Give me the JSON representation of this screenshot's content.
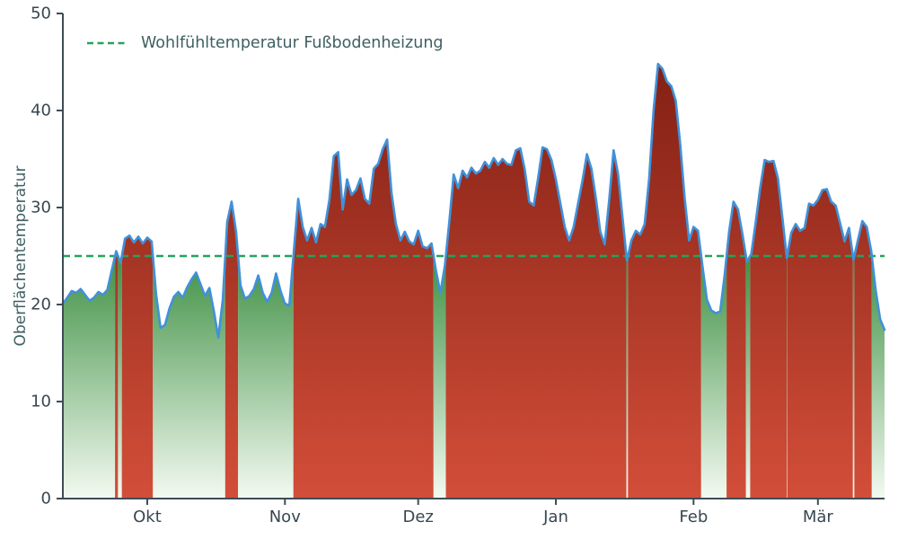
{
  "chart_data": {
    "type": "area",
    "title": "",
    "ylabel": "Oberflächentemperatur",
    "ylim": [
      0,
      50
    ],
    "yticks": [
      0,
      10,
      20,
      30,
      40,
      50
    ],
    "xticks": [
      {
        "day_index": 19,
        "label": "Okt"
      },
      {
        "day_index": 50,
        "label": "Nov"
      },
      {
        "day_index": 80,
        "label": "Dez"
      },
      {
        "day_index": 111,
        "label": "Jan"
      },
      {
        "day_index": 142,
        "label": "Feb"
      },
      {
        "day_index": 170,
        "label": "Mär"
      }
    ],
    "grid": false,
    "legend_position": "upper left",
    "threshold": {
      "value": 25,
      "label": "Wohlfühltemperatur Fußbodenheizung",
      "color": "#22a45c",
      "style": "dashed"
    },
    "fill_rule": "columns filled with red gradient where value is above threshold, green gradient where below",
    "series": [
      {
        "name": "Oberflächentemperatur",
        "x_unit": "day_index (daily values from mid-September to mid-March)",
        "values": [
          20.1,
          20.7,
          21.4,
          21.2,
          21.6,
          21.0,
          20.4,
          20.7,
          21.3,
          21.0,
          21.5,
          23.5,
          25.5,
          24.3,
          26.8,
          27.1,
          26.4,
          27.0,
          26.3,
          26.9,
          26.5,
          21.0,
          17.6,
          17.9,
          19.6,
          20.8,
          21.3,
          20.7,
          21.8,
          22.6,
          23.3,
          22.1,
          20.9,
          21.7,
          19.3,
          16.6,
          20.5,
          28.5,
          30.6,
          27.5,
          22.0,
          20.6,
          20.9,
          21.6,
          23.0,
          21.2,
          20.3,
          21.2,
          23.2,
          21.4,
          20.1,
          19.9,
          25.5,
          30.9,
          28.0,
          26.6,
          27.9,
          26.4,
          28.3,
          28.0,
          30.8,
          35.3,
          35.7,
          29.8,
          32.9,
          31.3,
          31.8,
          33.0,
          30.9,
          30.4,
          34.0,
          34.5,
          36.0,
          37.0,
          31.5,
          28.3,
          26.6,
          27.5,
          26.5,
          26.2,
          27.6,
          26.0,
          25.8,
          26.3,
          23.5,
          21.2,
          24.0,
          28.5,
          33.4,
          32.0,
          33.8,
          33.1,
          34.1,
          33.5,
          33.8,
          34.7,
          34.1,
          35.1,
          34.4,
          35.0,
          34.5,
          34.4,
          35.9,
          36.1,
          33.9,
          30.6,
          30.2,
          33.0,
          36.2,
          36.0,
          34.9,
          32.9,
          30.5,
          28.0,
          26.6,
          28.0,
          30.4,
          32.8,
          35.5,
          34.0,
          31.0,
          27.5,
          26.2,
          30.8,
          35.9,
          33.5,
          29.0,
          24.5,
          26.6,
          27.6,
          27.2,
          28.3,
          33.0,
          40.0,
          44.8,
          44.3,
          43.0,
          42.5,
          41.0,
          36.5,
          31.0,
          26.6,
          28.0,
          27.6,
          24.0,
          20.5,
          19.4,
          19.1,
          19.3,
          23.0,
          27.5,
          30.6,
          29.8,
          27.3,
          24.4,
          25.2,
          28.5,
          32.0,
          34.9,
          34.7,
          34.8,
          33.0,
          29.0,
          24.8,
          27.4,
          28.3,
          27.6,
          27.9,
          30.4,
          30.2,
          30.8,
          31.8,
          31.9,
          30.6,
          30.2,
          28.4,
          26.5,
          27.9,
          24.6,
          26.6,
          28.6,
          28.0,
          25.5,
          21.5,
          18.5,
          17.4
        ]
      }
    ],
    "colors": {
      "line": "#4191d9",
      "red_top": "#7a1b10",
      "red_bottom": "#d24e39",
      "green_top": "#3f9044",
      "green_bottom": "#f3faf1",
      "axis_text": "#37474f",
      "spine": "#3e4c55",
      "legend_text": "#3f5f63"
    }
  }
}
